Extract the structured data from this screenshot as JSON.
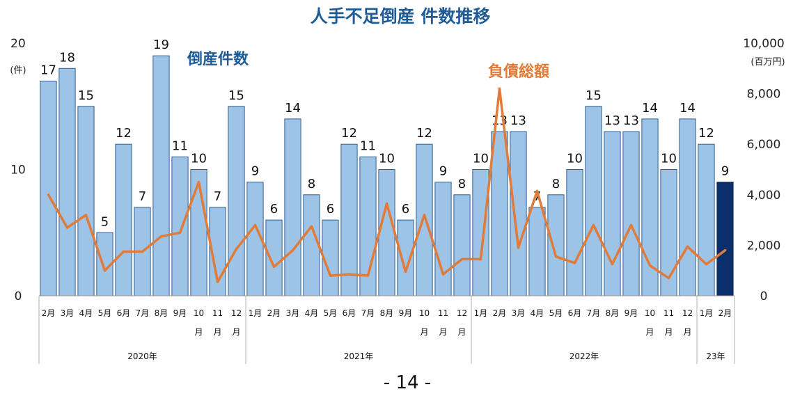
{
  "chart_data": {
    "type": "bar",
    "title": "人手不足倒産 件数推移",
    "categories": [
      "2月",
      "3月",
      "4月",
      "5月",
      "6月",
      "7月",
      "8月",
      "9月",
      "10月",
      "11月",
      "12月",
      "1月",
      "2月",
      "3月",
      "4月",
      "5月",
      "6月",
      "7月",
      "8月",
      "9月",
      "10月",
      "11月",
      "12月",
      "1月",
      "2月",
      "3月",
      "4月",
      "5月",
      "6月",
      "7月",
      "8月",
      "9月",
      "10月",
      "11月",
      "12月",
      "1月",
      "2月"
    ],
    "year_groups": [
      {
        "label": "2020年",
        "start": 0,
        "end": 10
      },
      {
        "label": "2021年",
        "start": 11,
        "end": 22
      },
      {
        "label": "2022年",
        "start": 23,
        "end": 34
      },
      {
        "label": "23年",
        "start": 35,
        "end": 36
      }
    ],
    "series": [
      {
        "name": "倒産件数",
        "type": "bar",
        "axis": "left",
        "color": "#9dc3e6",
        "highlight_color": "#0b2f6b",
        "values": [
          17,
          18,
          15,
          5,
          12,
          7,
          19,
          11,
          10,
          7,
          15,
          9,
          6,
          14,
          8,
          6,
          12,
          11,
          10,
          6,
          12,
          9,
          8,
          10,
          13,
          13,
          7,
          8,
          10,
          15,
          13,
          13,
          14,
          10,
          14,
          12,
          9
        ]
      },
      {
        "name": "負債総額",
        "type": "line",
        "axis": "right",
        "color": "#e07b39",
        "values": [
          4000,
          2700,
          3200,
          1000,
          1750,
          1750,
          2350,
          2500,
          4500,
          550,
          1850,
          2800,
          1150,
          1800,
          2750,
          800,
          850,
          800,
          3650,
          950,
          3200,
          850,
          1450,
          1450,
          8200,
          1900,
          4150,
          1550,
          1300,
          2800,
          1250,
          2800,
          1200,
          700,
          1950,
          1250,
          1800
        ]
      }
    ],
    "y_left": {
      "ticks": [
        "0",
        "10",
        "20"
      ],
      "min": 0,
      "max": 20,
      "unit": "(件)"
    },
    "y_right": {
      "ticks": [
        "0",
        "2,000",
        "4,000",
        "6,000",
        "8,000",
        "10,000"
      ],
      "min": 0,
      "max": 10000,
      "unit": "(百万円)"
    },
    "grid": false,
    "legend": "inline labels"
  },
  "page_number": "- 14 -"
}
